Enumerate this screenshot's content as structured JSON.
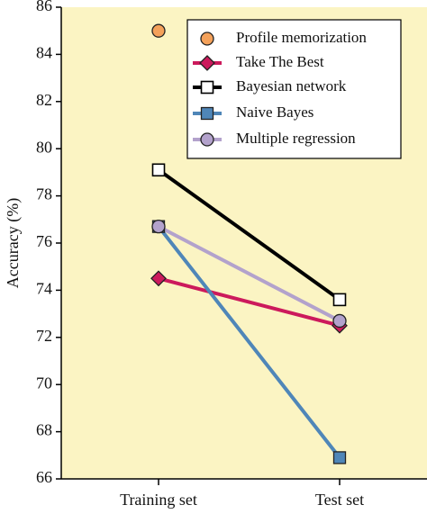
{
  "chart_data": {
    "type": "line",
    "y_label": "Accuracy (%)",
    "categories": [
      "Training set",
      "Test set"
    ],
    "series": [
      {
        "name": "Profile memorization",
        "color": "#f4a15a",
        "marker": "circle",
        "values": [
          85.0,
          null
        ]
      },
      {
        "name": "Take The Best",
        "color": "#cc1a5c",
        "marker": "diamond",
        "values": [
          74.5,
          72.5
        ]
      },
      {
        "name": "Bayesian network",
        "color": "#000000",
        "marker": "square-open",
        "values": [
          79.1,
          73.6
        ]
      },
      {
        "name": "Naive Bayes",
        "color": "#4f86b8",
        "marker": "square",
        "values": [
          76.7,
          66.9
        ]
      },
      {
        "name": "Multiple regression",
        "color": "#b3a2cc",
        "marker": "circle",
        "values": [
          76.7,
          72.7
        ]
      }
    ],
    "ylim": [
      66,
      86
    ],
    "yticks": [
      66,
      68,
      70,
      72,
      74,
      76,
      78,
      80,
      82,
      84,
      86
    ],
    "background": "#fbf4c3"
  }
}
